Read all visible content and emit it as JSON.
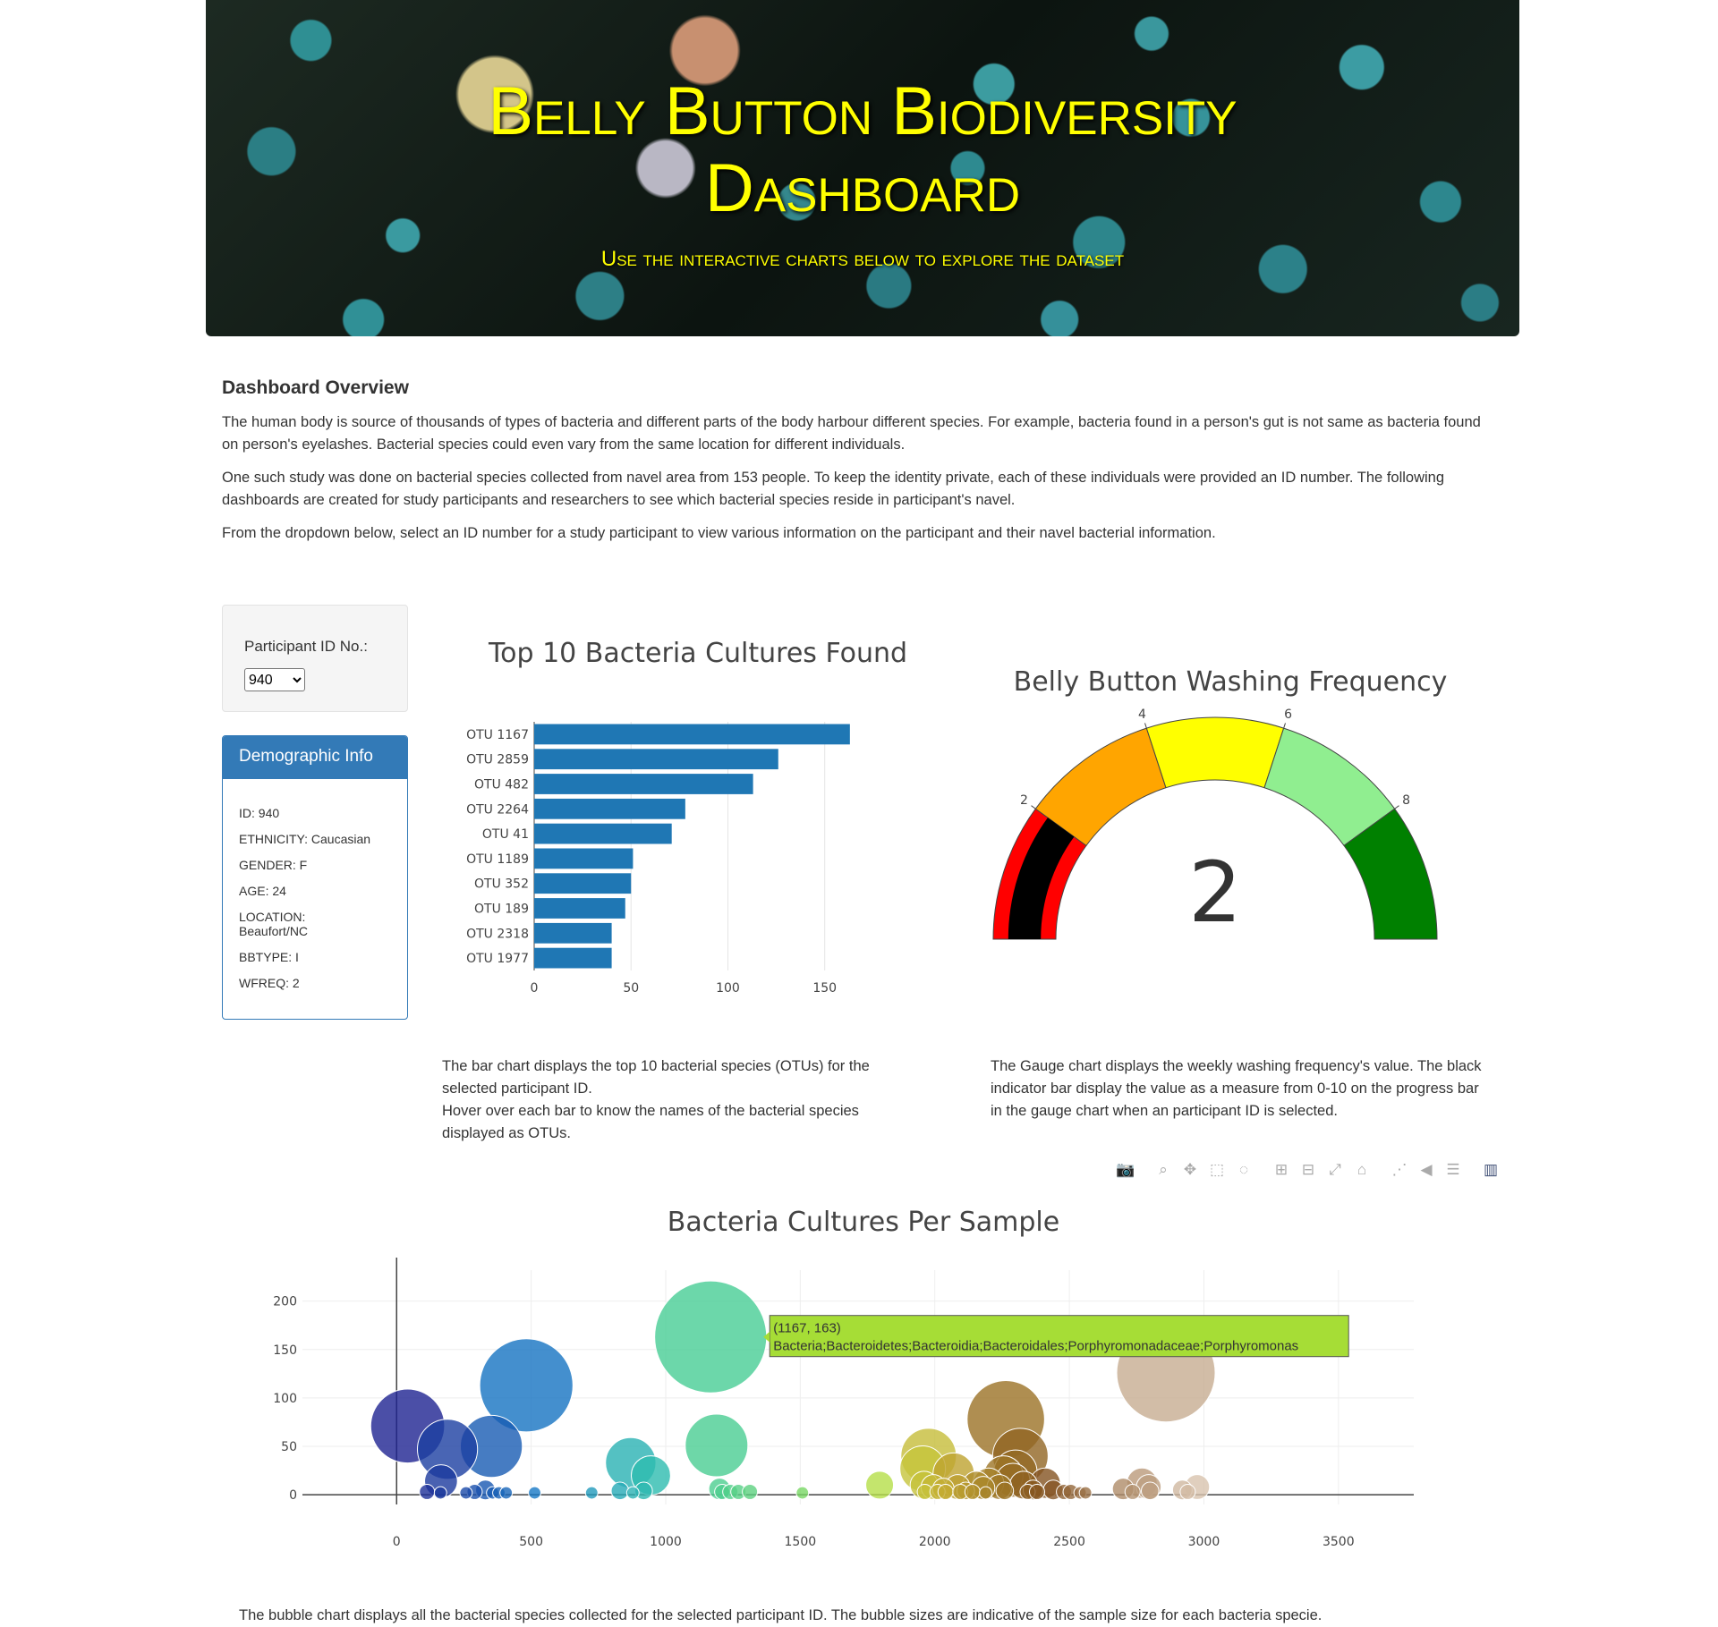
{
  "banner": {
    "title_line1": "Belly Button Biodiversity",
    "title_line2": "Dashboard",
    "subtitle": "Use the interactive charts below to explore the dataset"
  },
  "overview": {
    "heading": "Dashboard Overview",
    "p1": "The human body is source of thousands of types of bacteria and different parts of the body harbour different species. For example, bacteria found in a person's gut is not same as bacteria found on person's eyelashes. Bacterial species could even vary from the same location for different individuals.",
    "p2": "One such study was done on bacterial species collected from navel area from 153 people. To keep the identity private, each of these individuals were provided an ID number. The following dashboards are created for study participants and researchers to see which bacterial species reside in participant's navel.",
    "p3": "From the dropdown below, select an ID number for a study participant to view various information on the participant and their navel bacterial information."
  },
  "selector": {
    "label": "Participant ID No.:",
    "selected": "940"
  },
  "demographic": {
    "heading": "Demographic Info",
    "rows": [
      "ID: 940",
      "ETHNICITY: Caucasian",
      "GENDER: F",
      "AGE: 24",
      "LOCATION: Beaufort/NC",
      "BBTYPE: I",
      "WFREQ: 2"
    ]
  },
  "descriptions": {
    "bar": "The bar chart displays the top 10 bacterial species (OTUs) for the selected participant ID.",
    "bar2": "Hover over each bar to know the names of the bacterial species displayed as OTUs.",
    "gauge": "The Gauge chart displays the weekly washing frequency's value. The black indicator bar display the value as a measure from 0-10 on the progress bar in the gauge chart when an participant ID is selected.",
    "bubble": "The bubble chart displays all the bacterial species collected for the selected participant ID. The bubble sizes are indicative of the sample size for each bacteria specie."
  },
  "modebar": {
    "icons": [
      "camera-icon",
      "zoom-icon",
      "pan-icon",
      "box-select-icon",
      "lasso-icon",
      "zoom-in-icon",
      "zoom-out-icon",
      "autoscale-icon",
      "reset-axes-icon",
      "spike-lines-icon",
      "hover-closest-icon",
      "hover-compare-icon",
      "plotly-logo-icon"
    ]
  },
  "chart_data": [
    {
      "type": "bar",
      "orientation": "horizontal",
      "title": "Top 10 Bacteria Cultures Found",
      "categories": [
        "OTU 1167",
        "OTU 2859",
        "OTU 482",
        "OTU 2264",
        "OTU 41",
        "OTU 1189",
        "OTU 352",
        "OTU 189",
        "OTU 2318",
        "OTU 1977"
      ],
      "values": [
        163,
        126,
        113,
        78,
        71,
        51,
        50,
        47,
        40,
        40
      ],
      "xlim": [
        0,
        170
      ],
      "xticks": [
        0,
        50,
        100,
        150
      ],
      "color": "#1f77b4",
      "grid": true
    },
    {
      "type": "gauge",
      "title": "Belly Button Washing Frequency",
      "value": 2,
      "range": [
        0,
        10
      ],
      "ticks": [
        2,
        4,
        6,
        8
      ],
      "bands": [
        {
          "from": 0,
          "to": 2,
          "color": "#ff0000"
        },
        {
          "from": 2,
          "to": 4,
          "color": "#ffa500"
        },
        {
          "from": 4,
          "to": 6,
          "color": "#ffff00"
        },
        {
          "from": 6,
          "to": 8,
          "color": "#90ee90"
        },
        {
          "from": 8,
          "to": 10,
          "color": "#008000"
        }
      ],
      "indicator_color": "#000000"
    },
    {
      "type": "scatter",
      "title": "Bacteria Cultures Per Sample",
      "xlim": [
        -350,
        3780
      ],
      "ylim": [
        -10,
        232
      ],
      "xticks": [
        0,
        500,
        1000,
        1500,
        2000,
        2500,
        3000,
        3500
      ],
      "yticks": [
        0,
        50,
        100,
        150,
        200
      ],
      "grid": true,
      "colorscale": "Earth",
      "points": [
        {
          "x": 41,
          "y": 71
        },
        {
          "x": 113,
          "y": 3
        },
        {
          "x": 163,
          "y": 2
        },
        {
          "x": 189,
          "y": 47
        },
        {
          "x": 165,
          "y": 14
        },
        {
          "x": 258,
          "y": 2
        },
        {
          "x": 290,
          "y": 3
        },
        {
          "x": 330,
          "y": 5
        },
        {
          "x": 352,
          "y": 50
        },
        {
          "x": 357,
          "y": 2
        },
        {
          "x": 380,
          "y": 2
        },
        {
          "x": 407,
          "y": 2
        },
        {
          "x": 482,
          "y": 113
        },
        {
          "x": 513,
          "y": 2
        },
        {
          "x": 725,
          "y": 2
        },
        {
          "x": 870,
          "y": 33
        },
        {
          "x": 830,
          "y": 4
        },
        {
          "x": 878,
          "y": 2
        },
        {
          "x": 945,
          "y": 20
        },
        {
          "x": 918,
          "y": 4
        },
        {
          "x": 1167,
          "y": 163
        },
        {
          "x": 1189,
          "y": 51
        },
        {
          "x": 1200,
          "y": 6
        },
        {
          "x": 1210,
          "y": 3
        },
        {
          "x": 1240,
          "y": 3
        },
        {
          "x": 1270,
          "y": 3
        },
        {
          "x": 1313,
          "y": 3
        },
        {
          "x": 1508,
          "y": 2
        },
        {
          "x": 1795,
          "y": 10
        },
        {
          "x": 1977,
          "y": 40
        },
        {
          "x": 1955,
          "y": 27
        },
        {
          "x": 1960,
          "y": 10
        },
        {
          "x": 1963,
          "y": 3
        },
        {
          "x": 1995,
          "y": 8
        },
        {
          "x": 2010,
          "y": 3
        },
        {
          "x": 2032,
          "y": 6
        },
        {
          "x": 2040,
          "y": 3
        },
        {
          "x": 2070,
          "y": 22
        },
        {
          "x": 2085,
          "y": 8
        },
        {
          "x": 2095,
          "y": 3
        },
        {
          "x": 2115,
          "y": 4
        },
        {
          "x": 2140,
          "y": 3
        },
        {
          "x": 2155,
          "y": 10
        },
        {
          "x": 2180,
          "y": 7
        },
        {
          "x": 2189,
          "y": 2
        },
        {
          "x": 2200,
          "y": 12
        },
        {
          "x": 2240,
          "y": 8
        },
        {
          "x": 2264,
          "y": 78
        },
        {
          "x": 2255,
          "y": 20
        },
        {
          "x": 2260,
          "y": 4
        },
        {
          "x": 2290,
          "y": 15
        },
        {
          "x": 2318,
          "y": 40
        },
        {
          "x": 2300,
          "y": 24
        },
        {
          "x": 2330,
          "y": 10
        },
        {
          "x": 2345,
          "y": 3
        },
        {
          "x": 2365,
          "y": 5
        },
        {
          "x": 2380,
          "y": 3
        },
        {
          "x": 2410,
          "y": 12
        },
        {
          "x": 2440,
          "y": 5
        },
        {
          "x": 2480,
          "y": 3
        },
        {
          "x": 2505,
          "y": 3
        },
        {
          "x": 2540,
          "y": 2
        },
        {
          "x": 2560,
          "y": 2
        },
        {
          "x": 2700,
          "y": 6
        },
        {
          "x": 2735,
          "y": 3
        },
        {
          "x": 2770,
          "y": 12
        },
        {
          "x": 2795,
          "y": 8
        },
        {
          "x": 2800,
          "y": 4
        },
        {
          "x": 2859,
          "y": 126
        },
        {
          "x": 2920,
          "y": 5
        },
        {
          "x": 2940,
          "y": 3
        },
        {
          "x": 2975,
          "y": 8
        }
      ],
      "hover": {
        "coords": "(1167, 163)",
        "label": "Bacteria;Bacteroidetes;Bacteroidia;Bacteroidales;Porphyromonadaceae;Porphyromonas",
        "color": "#a6dd36"
      }
    }
  ]
}
